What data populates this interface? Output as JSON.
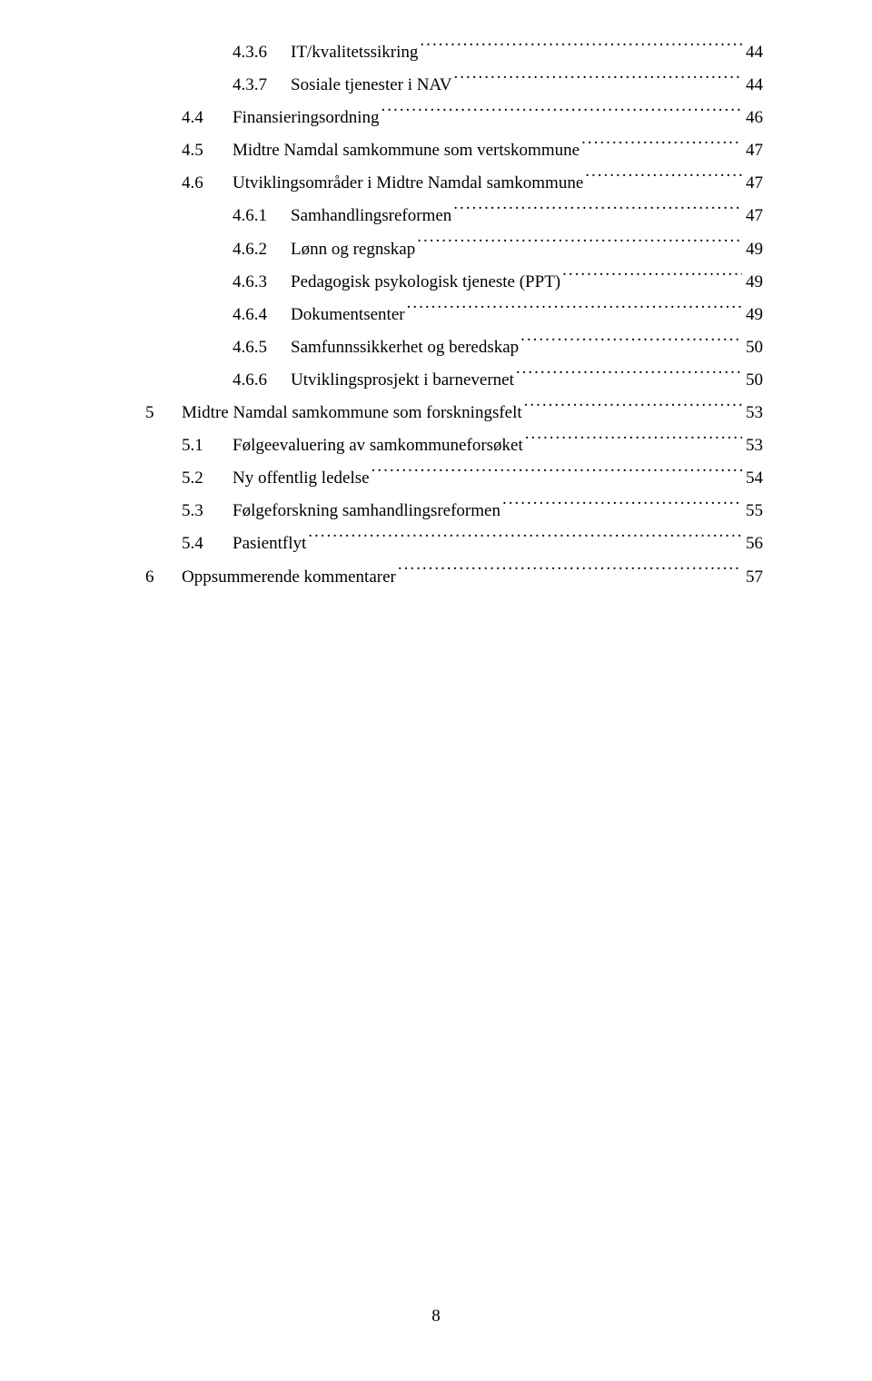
{
  "font_family": "Times New Roman",
  "text_color": "#000000",
  "background_color": "#ffffff",
  "base_fontsize": 19,
  "line_height": 1.9,
  "page_number": "8",
  "toc": [
    {
      "indent": 2,
      "num": "4.3.6",
      "title": "IT/kvalitetssikring",
      "page": "44"
    },
    {
      "indent": 2,
      "num": "4.3.7",
      "title": "Sosiale tjenester i NAV",
      "page": "44"
    },
    {
      "indent": 1,
      "num": "4.4",
      "title": "Finansieringsordning",
      "page": "46"
    },
    {
      "indent": 1,
      "num": "4.5",
      "title": "Midtre Namdal samkommune som vertskommune",
      "page": "47"
    },
    {
      "indent": 1,
      "num": "4.6",
      "title": "Utviklingsområder i Midtre Namdal samkommune",
      "page": "47"
    },
    {
      "indent": 2,
      "num": "4.6.1",
      "title": "Samhandlingsreformen",
      "page": "47"
    },
    {
      "indent": 2,
      "num": "4.6.2",
      "title": "Lønn og regnskap",
      "page": "49"
    },
    {
      "indent": 2,
      "num": "4.6.3",
      "title": "Pedagogisk psykologisk tjeneste (PPT)",
      "page": "49"
    },
    {
      "indent": 2,
      "num": "4.6.4",
      "title": "Dokumentsenter",
      "page": "49"
    },
    {
      "indent": 2,
      "num": "4.6.5",
      "title": "Samfunnssikkerhet og beredskap",
      "page": "50"
    },
    {
      "indent": 2,
      "num": "4.6.6",
      "title": "Utviklingsprosjekt i barnevernet",
      "page": "50"
    },
    {
      "indent": 0,
      "num": "5",
      "title": "Midtre Namdal samkommune som forskningsfelt",
      "page": "53"
    },
    {
      "indent": 1,
      "num": "5.1",
      "title": "Følgeevaluering av samkommuneforsøket",
      "page": "53"
    },
    {
      "indent": 1,
      "num": "5.2",
      "title": "Ny offentlig ledelse",
      "page": "54"
    },
    {
      "indent": 1,
      "num": "5.3",
      "title": "Følgeforskning samhandlingsreformen",
      "page": "55"
    },
    {
      "indent": 1,
      "num": "5.4",
      "title": "Pasientflyt",
      "page": "56"
    },
    {
      "indent": 0,
      "num": "6",
      "title": "Oppsummerende kommentarer",
      "page": "57"
    }
  ]
}
